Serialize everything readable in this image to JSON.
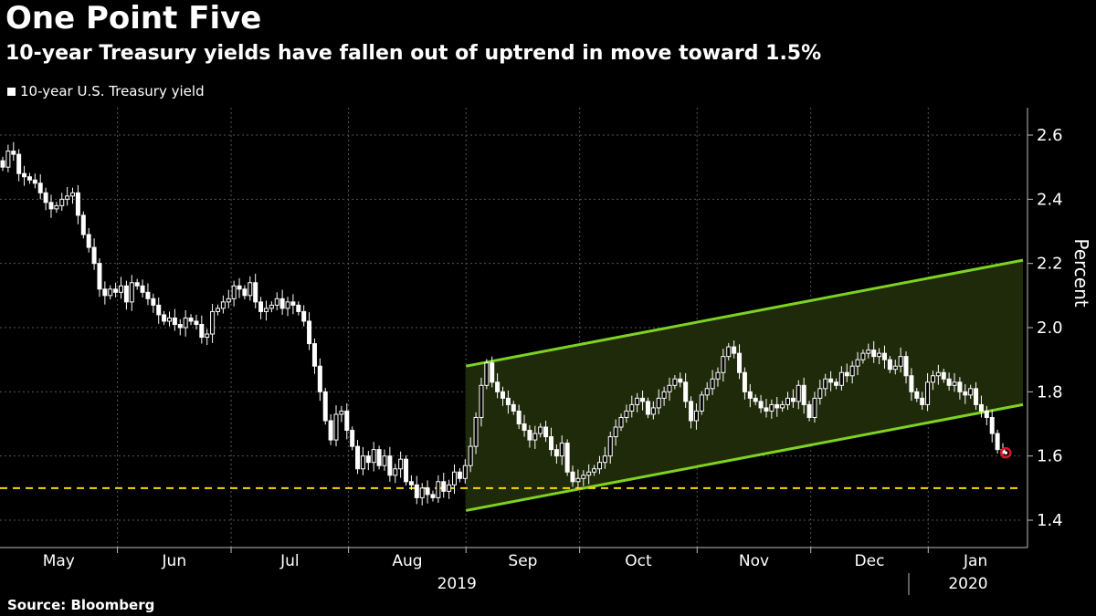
{
  "header": {
    "title": "One Point Five",
    "subtitle": "10-year Treasury yields have fallen out of uptrend in move toward 1.5%"
  },
  "footer": {
    "source": "Source: Bloomberg"
  },
  "colors": {
    "background": "#000000",
    "candle": "#ffffff",
    "channel_line": "#7ed321",
    "channel_fill": "#1f2a0a",
    "threshold_line": "#f5d90a",
    "marker": "#e0102a",
    "grid": "#555555"
  },
  "chart_data": {
    "type": "candlestick",
    "title": "One Point Five",
    "subtitle": "10-year Treasury yields have fallen out of uptrend in move toward 1.5%",
    "legend": [
      "10-year U.S. Treasury yield"
    ],
    "legend_position": "top-left",
    "ylabel": "Percent",
    "ylim": [
      1.3,
      2.7
    ],
    "yticks": [
      1.4,
      1.6,
      1.8,
      2.0,
      2.2,
      2.4,
      2.6
    ],
    "ytick_labels": [
      "1.4",
      "1.6",
      "1.8",
      "2.0",
      "2.2",
      "2.4",
      "2.6"
    ],
    "x_months": [
      "May",
      "Jun",
      "Jul",
      "Aug",
      "Sep",
      "Oct",
      "Nov",
      "Dec",
      "Jan"
    ],
    "x_years": [
      "2019",
      "2020"
    ],
    "x_range_days": [
      0,
      270
    ],
    "month_boundaries_days": [
      0,
      31,
      61,
      92,
      123,
      153,
      184,
      214,
      245
    ],
    "grid": true,
    "threshold": {
      "value": 1.5,
      "style": "dashed"
    },
    "channel": {
      "start_day": 123,
      "end_day": 270,
      "upper": [
        1.88,
        2.21
      ],
      "lower": [
        1.43,
        1.76
      ]
    },
    "latest_point": {
      "day": 265,
      "value": 1.61
    },
    "closes": [
      2.5,
      2.55,
      2.54,
      2.48,
      2.47,
      2.46,
      2.45,
      2.42,
      2.39,
      2.37,
      2.38,
      2.4,
      2.41,
      2.42,
      2.35,
      2.29,
      2.25,
      2.2,
      2.12,
      2.1,
      2.12,
      2.11,
      2.13,
      2.08,
      2.14,
      2.13,
      2.11,
      2.09,
      2.07,
      2.04,
      2.02,
      2.03,
      2.01,
      2.0,
      2.03,
      2.02,
      2.01,
      1.97,
      1.98,
      2.05,
      2.06,
      2.08,
      2.09,
      2.13,
      2.12,
      2.1,
      2.14,
      2.08,
      2.05,
      2.06,
      2.07,
      2.09,
      2.06,
      2.08,
      2.07,
      2.05,
      2.02,
      1.95,
      1.88,
      1.8,
      1.71,
      1.65,
      1.73,
      1.74,
      1.68,
      1.63,
      1.56,
      1.6,
      1.58,
      1.62,
      1.57,
      1.6,
      1.54,
      1.56,
      1.59,
      1.52,
      1.51,
      1.47,
      1.5,
      1.48,
      1.47,
      1.52,
      1.49,
      1.51,
      1.55,
      1.53,
      1.57,
      1.63,
      1.72,
      1.82,
      1.89,
      1.83,
      1.8,
      1.78,
      1.76,
      1.74,
      1.7,
      1.68,
      1.65,
      1.67,
      1.69,
      1.66,
      1.62,
      1.6,
      1.64,
      1.55,
      1.52,
      1.53,
      1.54,
      1.55,
      1.56,
      1.58,
      1.6,
      1.66,
      1.69,
      1.72,
      1.74,
      1.76,
      1.78,
      1.77,
      1.73,
      1.75,
      1.78,
      1.8,
      1.82,
      1.84,
      1.83,
      1.77,
      1.71,
      1.74,
      1.79,
      1.81,
      1.84,
      1.86,
      1.91,
      1.94,
      1.92,
      1.86,
      1.8,
      1.78,
      1.77,
      1.75,
      1.74,
      1.76,
      1.75,
      1.76,
      1.78,
      1.77,
      1.82,
      1.76,
      1.72,
      1.78,
      1.81,
      1.84,
      1.83,
      1.82,
      1.86,
      1.85,
      1.88,
      1.9,
      1.92,
      1.93,
      1.91,
      1.92,
      1.9,
      1.87,
      1.88,
      1.91,
      1.85,
      1.8,
      1.78,
      1.76,
      1.83,
      1.85,
      1.86,
      1.84,
      1.82,
      1.83,
      1.8,
      1.79,
      1.81,
      1.76,
      1.74,
      1.72,
      1.67,
      1.62,
      1.61
    ]
  }
}
